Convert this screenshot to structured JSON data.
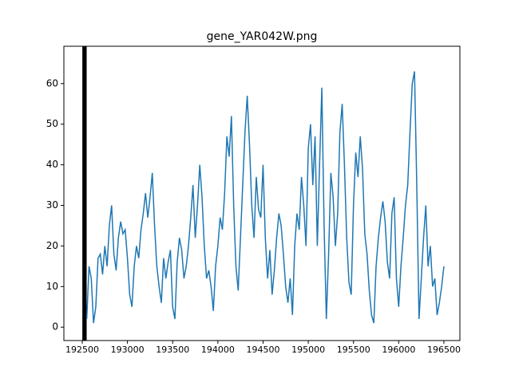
{
  "chart_data": {
    "type": "line",
    "title": "gene_YAR042W.png",
    "x": [
      192550,
      192575,
      192600,
      192625,
      192650,
      192675,
      192700,
      192725,
      192750,
      192775,
      192800,
      192825,
      192850,
      192875,
      192900,
      192925,
      192950,
      192975,
      193000,
      193025,
      193050,
      193075,
      193100,
      193125,
      193150,
      193175,
      193200,
      193225,
      193250,
      193275,
      193300,
      193325,
      193350,
      193375,
      193400,
      193425,
      193450,
      193475,
      193500,
      193525,
      193550,
      193575,
      193600,
      193625,
      193650,
      193675,
      193700,
      193725,
      193750,
      193775,
      193800,
      193825,
      193850,
      193875,
      193900,
      193925,
      193950,
      193975,
      194000,
      194025,
      194050,
      194075,
      194100,
      194125,
      194150,
      194175,
      194200,
      194225,
      194250,
      194275,
      194300,
      194325,
      194350,
      194375,
      194400,
      194425,
      194450,
      194475,
      194500,
      194525,
      194550,
      194575,
      194600,
      194625,
      194650,
      194675,
      194700,
      194725,
      194750,
      194775,
      194800,
      194825,
      194850,
      194875,
      194900,
      194925,
      194950,
      194975,
      195000,
      195025,
      195050,
      195075,
      195100,
      195125,
      195150,
      195175,
      195200,
      195225,
      195250,
      195275,
      195300,
      195325,
      195350,
      195375,
      195400,
      195425,
      195450,
      195475,
      195500,
      195525,
      195550,
      195575,
      195600,
      195625,
      195650,
      195675,
      195700,
      195725,
      195750,
      195775,
      195800,
      195825,
      195850,
      195875,
      195900,
      195925,
      195950,
      195975,
      196000,
      196025,
      196050,
      196075,
      196100,
      196125,
      196150,
      196175,
      196200,
      196225,
      196250,
      196275,
      196300,
      196325,
      196350,
      196375,
      196400,
      196425,
      196450,
      196475,
      196500
    ],
    "series": [
      {
        "color": "#1f77b4",
        "values": [
          2,
          15,
          12,
          1,
          5,
          17,
          18,
          13,
          20,
          15,
          25,
          30,
          18,
          14,
          22,
          26,
          23,
          24,
          17,
          8,
          5,
          15,
          20,
          17,
          24,
          28,
          33,
          27,
          32,
          38,
          25,
          15,
          10,
          6,
          17,
          12,
          16,
          19,
          5,
          2,
          16,
          22,
          19,
          12,
          15,
          20,
          27,
          35,
          22,
          30,
          40,
          32,
          20,
          12,
          14,
          10,
          4,
          15,
          20,
          27,
          24,
          33,
          47,
          42,
          52,
          30,
          15,
          9,
          22,
          35,
          48,
          57,
          45,
          30,
          22,
          37,
          29,
          27,
          40,
          22,
          12,
          19,
          8,
          14,
          22,
          28,
          25,
          18,
          10,
          6,
          12,
          3,
          20,
          28,
          24,
          37,
          30,
          20,
          44,
          50,
          35,
          47,
          20,
          40,
          59,
          25,
          2,
          18,
          38,
          32,
          20,
          28,
          48,
          55,
          40,
          22,
          11,
          8,
          30,
          43,
          37,
          47,
          39,
          23,
          18,
          9,
          3,
          1,
          15,
          22,
          27,
          31,
          26,
          16,
          12,
          28,
          32,
          12,
          5,
          15,
          22,
          30,
          35,
          48,
          60,
          63,
          35,
          2,
          12,
          22,
          30,
          15,
          20,
          10,
          12,
          3,
          6,
          10,
          15
        ]
      }
    ],
    "vlines": [
      192510,
      192520,
      192530,
      192540
    ],
    "vline_color": "#000000",
    "xlim": [
      192297,
      196677
    ],
    "ylim": [
      -3.3,
      69.2
    ],
    "xticks": [
      192500,
      193000,
      193500,
      194000,
      194500,
      195000,
      195500,
      196000,
      196500
    ],
    "yticks": [
      0,
      10,
      20,
      30,
      40,
      50,
      60
    ]
  }
}
